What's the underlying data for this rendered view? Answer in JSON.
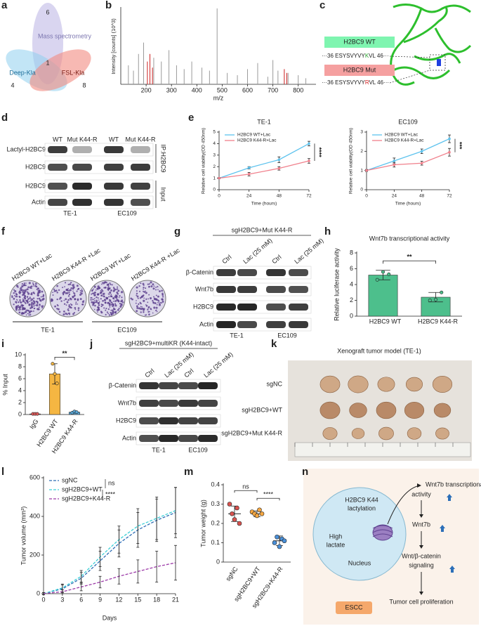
{
  "panel_labels": [
    "a",
    "b",
    "c",
    "d",
    "e",
    "f",
    "g",
    "h",
    "i",
    "j",
    "k",
    "l",
    "m",
    "n"
  ],
  "venn": {
    "sets": [
      {
        "name": "Mass spectrometry",
        "count": 6
      },
      {
        "name": "Deep-Kla",
        "count": 4
      },
      {
        "name": "FSL-Kla",
        "count": 8
      }
    ],
    "shared": 1
  },
  "structure": {
    "wt": {
      "label": "H2BC9 WT",
      "prefix": "···36 ESYSVYVY",
      "site": "K",
      "suffix": "VL 46···"
    },
    "mut": {
      "label": "H2BC9 Mut",
      "prefix": "···36 ESYSVYVY",
      "site": "R",
      "suffix": "VL 46···"
    }
  },
  "blot_d": {
    "columns": [
      "WT",
      "Mut K44-R",
      "WT",
      "Mut K44-R"
    ],
    "rows": [
      "Lactyl-H2BC9",
      "H2BC9",
      "H2BC9",
      "Actin"
    ],
    "sections": [
      "IP:H2BC9",
      "Input"
    ],
    "groups": [
      "TE-1",
      "EC109"
    ]
  },
  "colony_f": {
    "labels": [
      "H2BC9 WT+Lac",
      "H2BC9 K44-R +Lac",
      "H2BC9 WT+Lac",
      "H2BC9 K44-R +Lac"
    ],
    "groups": [
      "TE-1",
      "EC109"
    ]
  },
  "blot_g": {
    "header": "sgH2BC9+Mut K44-R",
    "columns": [
      "Ctrl",
      "Lac (25 mM)",
      "Ctrl",
      "Lac (25 mM)"
    ],
    "rows": [
      "β-Catenin",
      "Wnt7b",
      "H2BC9",
      "Actin"
    ],
    "groups": [
      "TE-1",
      "EC109"
    ]
  },
  "blot_j": {
    "header": "sgH2BC9+multiKR (K44-intact)",
    "columns": [
      "Ctrl",
      "Lac (25 mM)",
      "Ctrl",
      "Lac (25 mM)"
    ],
    "rows": [
      "β-Catenin",
      "Wnt7b",
      "H2BC9",
      "Actin"
    ],
    "groups": [
      "TE-1",
      "EC109"
    ]
  },
  "xenograft_k": {
    "title": "Xenograft tumor model (TE-1)",
    "rows": [
      "sgNC",
      "sgH2BC9+WT",
      "sgH2BC9+Mut K44-R"
    ]
  },
  "model_n": {
    "nucleus_texts": [
      "H2BC9 K44",
      "lactylation",
      "High",
      "lactate",
      "Nucleus"
    ],
    "disease": "ESCC",
    "steps": [
      "Wnt7b transcriptional",
      "activity",
      "Wnt7b",
      "Wnt/β-catenin",
      "signaling",
      "Tumor cell proliferation"
    ]
  },
  "chart_data": [
    {
      "type": "spectrum",
      "xlabel": "m/z",
      "ylabel": "Intensity [counts] (10^3)",
      "xlim": [
        100,
        870
      ],
      "ylim": [
        0,
        100
      ],
      "xticks": [
        200,
        300,
        400,
        500,
        600,
        700,
        800
      ],
      "series": [
        {
          "color": "#9a9a9a",
          "x": [
            130,
            150,
            170,
            190,
            230,
            260,
            290,
            320,
            350,
            380,
            420,
            450,
            480,
            520,
            560,
            600,
            640,
            680,
            700,
            720,
            760,
            800,
            830
          ],
          "values": [
            25,
            18,
            40,
            55,
            35,
            30,
            45,
            25,
            20,
            30,
            22,
            18,
            100,
            15,
            12,
            20,
            28,
            10,
            32,
            18,
            15,
            12,
            8
          ]
        },
        {
          "color": "#cc1f1f",
          "x": [
            205,
            215,
            225,
            745,
            755
          ],
          "values": [
            30,
            40,
            22,
            20,
            15
          ]
        }
      ]
    },
    {
      "type": "line",
      "title": "TE-1",
      "xlabel": "Time (hours)",
      "ylabel": "Relative cell viability(OD 450nm)",
      "x": [
        0,
        24,
        48,
        72
      ],
      "xlim": [
        0,
        72
      ],
      "xticks": [
        0,
        24,
        48,
        72
      ],
      "ylim": [
        0,
        5
      ],
      "yticks": [
        0,
        1,
        2,
        3,
        4,
        5
      ],
      "series": [
        {
          "name": "H2BC9 WT+Lac",
          "color": "#5ec3ee",
          "values": [
            1,
            1.9,
            2.6,
            4.0
          ],
          "errors": [
            0.05,
            0.1,
            0.25,
            0.2
          ]
        },
        {
          "name": "H2BC9 K44-R+Lac",
          "color": "#f0808c",
          "values": [
            1,
            1.35,
            1.85,
            2.5
          ],
          "errors": [
            0.05,
            0.15,
            0.15,
            0.2
          ]
        }
      ],
      "significance": [
        "****"
      ]
    },
    {
      "type": "line",
      "title": "EC109",
      "xlabel": "Time (hours)",
      "ylabel": "Relative cell viability(OD 450nm)",
      "x": [
        0,
        24,
        48,
        72
      ],
      "xlim": [
        0,
        72
      ],
      "xticks": [
        0,
        24,
        48,
        72
      ],
      "ylim": [
        0,
        3
      ],
      "yticks": [
        0,
        1,
        2,
        3
      ],
      "series": [
        {
          "name": "H2BC9 WT+Lac",
          "color": "#5ec3ee",
          "values": [
            1,
            1.5,
            2.0,
            2.65
          ],
          "errors": [
            0.05,
            0.15,
            0.12,
            0.2
          ]
        },
        {
          "name": "H2BC9 K44-R+Lac",
          "color": "#f0808c",
          "values": [
            1,
            1.3,
            1.38,
            1.95
          ],
          "errors": [
            0.05,
            0.12,
            0.1,
            0.2
          ]
        }
      ],
      "significance": [
        "***"
      ]
    },
    {
      "type": "bar",
      "title": "Wnt7b transcriptional activity",
      "ylabel": "Relative luciferase activity",
      "categories": [
        "H2BC9 WT",
        "H2BC9 K44-R"
      ],
      "values": [
        5.2,
        2.4
      ],
      "errors": [
        0.6,
        0.6
      ],
      "points": [
        [
          4.6,
          5.6,
          5.3
        ],
        [
          2.0,
          2.1,
          3.0
        ]
      ],
      "color": "#4dbf8c",
      "ylim": [
        0,
        8
      ],
      "yticks": [
        0,
        2,
        4,
        6,
        8
      ],
      "significance": [
        "**"
      ]
    },
    {
      "type": "bar",
      "ylabel": "% Input",
      "categories": [
        "IgG",
        "H2BC9 WT",
        "H2BC9 K44-R"
      ],
      "values": [
        0.1,
        6.8,
        0.4
      ],
      "errors": [
        0.05,
        1.7,
        0.15
      ],
      "points": [
        [
          0.1,
          0.1,
          0.1
        ],
        [
          8.5,
          6.8,
          5.2
        ],
        [
          0.3,
          0.5,
          0.4
        ]
      ],
      "colors": [
        "#e05b5b",
        "#f5b642",
        "#5aa8d8"
      ],
      "ylim": [
        0,
        10
      ],
      "yticks": [
        0,
        2,
        4,
        6,
        8,
        10
      ],
      "significance": [
        "**"
      ]
    },
    {
      "type": "line",
      "xlabel": "Days",
      "ylabel": "Tumor volume (mm³)",
      "x": [
        0,
        3,
        6,
        9,
        12,
        15,
        18,
        21
      ],
      "xlim": [
        0,
        21
      ],
      "xticks": [
        0,
        3,
        6,
        9,
        12,
        15,
        18,
        21
      ],
      "ylim": [
        0,
        600
      ],
      "yticks": [
        0,
        200,
        400,
        600
      ],
      "dashed": true,
      "series": [
        {
          "name": "sgNC",
          "color": "#2e6db4",
          "values": [
            0,
            25,
            80,
            170,
            260,
            330,
            380,
            420
          ],
          "errors": [
            5,
            20,
            30,
            50,
            70,
            90,
            110,
            130
          ]
        },
        {
          "name": "sgH2BC9+WT",
          "color": "#3ccfd6",
          "values": [
            0,
            30,
            90,
            190,
            280,
            350,
            390,
            430
          ],
          "errors": [
            5,
            20,
            30,
            50,
            70,
            90,
            110,
            120
          ]
        },
        {
          "name": "sgH2BC9+K44-R",
          "color": "#9c3aa8",
          "values": [
            0,
            10,
            35,
            60,
            90,
            115,
            140,
            160
          ],
          "errors": [
            5,
            10,
            20,
            30,
            40,
            60,
            80,
            90
          ]
        }
      ],
      "significance": [
        "ns",
        "****"
      ]
    },
    {
      "type": "dot",
      "ylabel": "Tumor weight (g)",
      "categories": [
        "sgNC",
        "sgH2BC9+WT",
        "sgH2BC9+K44-R"
      ],
      "values": [
        0.25,
        0.25,
        0.11
      ],
      "errors": [
        0.04,
        0.015,
        0.025
      ],
      "points": [
        [
          0.3,
          0.25,
          0.22,
          0.28,
          0.2
        ],
        [
          0.26,
          0.25,
          0.24,
          0.27,
          0.25
        ],
        [
          0.1,
          0.13,
          0.08,
          0.12,
          0.11
        ]
      ],
      "colors": [
        "#d9534f",
        "#f5a742",
        "#4a90d9"
      ],
      "ylim": [
        0,
        0.4
      ],
      "yticks": [
        0,
        0.1,
        0.2,
        0.3,
        0.4
      ],
      "significance": [
        "ns",
        "****"
      ]
    }
  ]
}
